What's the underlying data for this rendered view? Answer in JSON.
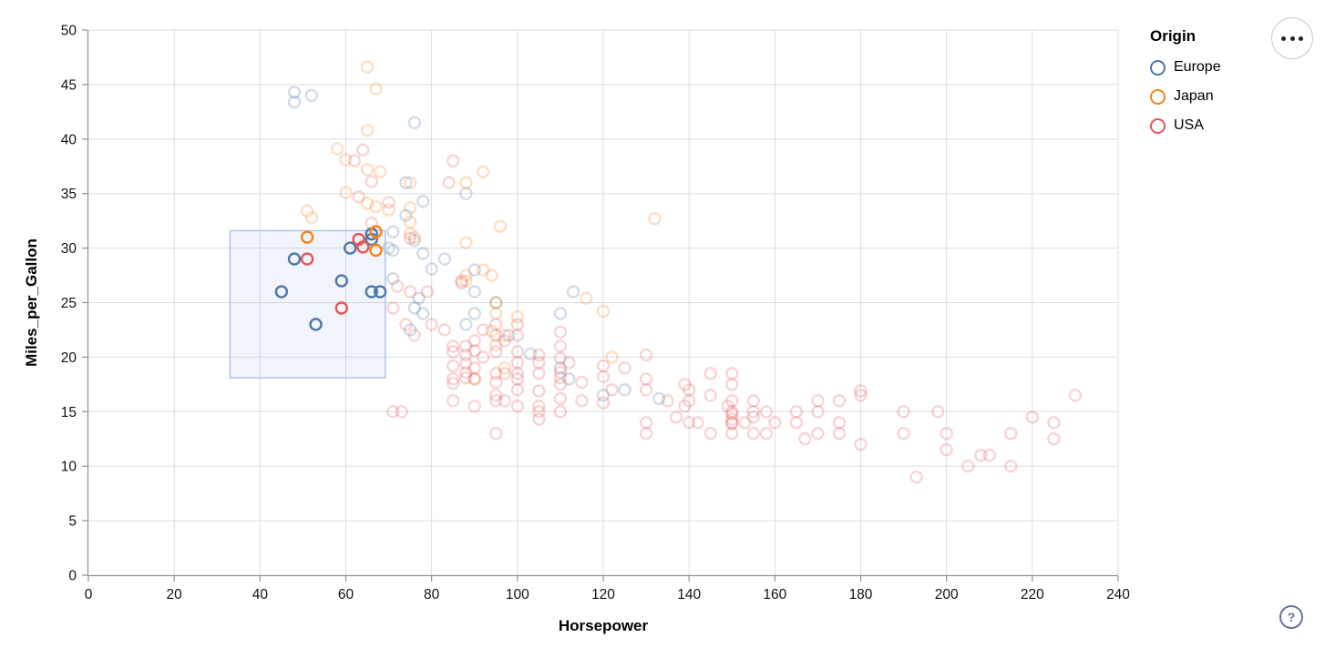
{
  "chart_data": {
    "type": "scatter",
    "title": "",
    "xlabel": "Horsepower",
    "ylabel": "Miles_per_Gallon",
    "xlim": [
      0,
      240
    ],
    "ylim": [
      0,
      50
    ],
    "x_ticks": [
      0,
      20,
      40,
      60,
      80,
      100,
      120,
      140,
      160,
      180,
      200,
      220,
      240
    ],
    "y_ticks": [
      0,
      5,
      10,
      15,
      20,
      25,
      30,
      35,
      40,
      45,
      50
    ],
    "grid": true,
    "legend": {
      "title": "Origin",
      "position": "top-right",
      "entries": [
        {
          "label": "Europe",
          "color": "#4c78a8"
        },
        {
          "label": "Japan",
          "color": "#f58518"
        },
        {
          "label": "USA",
          "color": "#e45756"
        }
      ]
    },
    "brush_selection": {
      "hp": [
        33,
        69.2
      ],
      "mpg": [
        18.1,
        31.6
      ],
      "fill": "rgba(120,152,220,0.10)",
      "stroke": "#a8bcea"
    },
    "point_style": {
      "shape": "open-circle",
      "selected_opacity": 1,
      "unselected_opacity": 0.25
    },
    "series": [
      {
        "name": "Europe",
        "color": "#4c78a8",
        "selected": [
          [
            48,
            29
          ],
          [
            45,
            26
          ],
          [
            53,
            23
          ],
          [
            59,
            27
          ],
          [
            61,
            30
          ],
          [
            66,
            31.3
          ],
          [
            66,
            30.8
          ],
          [
            66,
            26
          ],
          [
            68,
            26
          ]
        ],
        "unselected": [
          [
            48,
            44.3
          ],
          [
            52,
            44
          ],
          [
            48,
            43.4
          ],
          [
            76,
            41.5
          ],
          [
            74,
            36
          ],
          [
            88,
            35
          ],
          [
            78,
            34.3
          ],
          [
            74,
            33
          ],
          [
            71,
            31.5
          ],
          [
            70,
            30
          ],
          [
            76,
            30.7
          ],
          [
            71,
            29.8
          ],
          [
            78,
            29.5
          ],
          [
            83,
            29
          ],
          [
            90,
            28
          ],
          [
            80,
            28.1
          ],
          [
            71,
            27.2
          ],
          [
            113,
            26
          ],
          [
            90,
            26
          ],
          [
            95,
            25
          ],
          [
            77,
            25.4
          ],
          [
            76,
            24.5
          ],
          [
            90,
            24
          ],
          [
            110,
            24
          ],
          [
            78,
            24
          ],
          [
            88,
            23
          ],
          [
            75,
            22.5
          ],
          [
            98,
            22
          ],
          [
            103,
            20.3
          ],
          [
            110,
            19
          ],
          [
            112,
            18
          ],
          [
            120,
            16.5
          ],
          [
            125,
            17
          ],
          [
            133,
            16.2
          ]
        ]
      },
      {
        "name": "Japan",
        "color": "#f58518",
        "selected": [
          [
            51,
            31
          ],
          [
            67,
            31.5
          ],
          [
            67,
            29.8
          ]
        ],
        "unselected": [
          [
            65,
            46.6
          ],
          [
            67,
            44.6
          ],
          [
            65,
            40.8
          ],
          [
            58,
            39.1
          ],
          [
            60,
            38.1
          ],
          [
            65,
            37.2
          ],
          [
            92,
            37
          ],
          [
            68,
            37
          ],
          [
            88,
            36
          ],
          [
            75,
            36
          ],
          [
            60,
            35.1
          ],
          [
            65,
            34.1
          ],
          [
            75,
            33.7
          ],
          [
            67,
            33.8
          ],
          [
            70,
            33.5
          ],
          [
            51,
            33.4
          ],
          [
            52,
            32.8
          ],
          [
            132,
            32.7
          ],
          [
            96,
            32
          ],
          [
            75,
            32.4
          ],
          [
            75,
            31.3
          ],
          [
            76,
            31
          ],
          [
            88,
            30.5
          ],
          [
            92,
            28
          ],
          [
            94,
            27.5
          ],
          [
            88,
            27.5
          ],
          [
            88,
            27
          ],
          [
            116,
            25.4
          ],
          [
            95,
            25
          ],
          [
            120,
            24.2
          ],
          [
            95,
            24
          ],
          [
            100,
            23.7
          ],
          [
            94,
            22.4
          ],
          [
            97,
            22
          ],
          [
            95,
            21.1
          ],
          [
            122,
            20
          ],
          [
            97,
            19
          ],
          [
            90,
            18
          ]
        ]
      },
      {
        "name": "USA",
        "color": "#e45756",
        "selected": [
          [
            51,
            29
          ],
          [
            63,
            30.8
          ],
          [
            64,
            30.1
          ],
          [
            59,
            24.5
          ]
        ],
        "unselected": [
          [
            64,
            39
          ],
          [
            62,
            38
          ],
          [
            85,
            38
          ],
          [
            84,
            36
          ],
          [
            66,
            36.1
          ],
          [
            63,
            34.7
          ],
          [
            70,
            34.2
          ],
          [
            66,
            32.3
          ],
          [
            75,
            30.9
          ],
          [
            72,
            26.5
          ],
          [
            75,
            26
          ],
          [
            79,
            26
          ],
          [
            71,
            24.5
          ],
          [
            74,
            23
          ],
          [
            80,
            23
          ],
          [
            76,
            22
          ],
          [
            83,
            22.5
          ],
          [
            71,
            15
          ],
          [
            73,
            15
          ],
          [
            85,
            21
          ],
          [
            85,
            20.5
          ],
          [
            85,
            19.2
          ],
          [
            85,
            18
          ],
          [
            85,
            17.6
          ],
          [
            85,
            16
          ],
          [
            87,
            27
          ],
          [
            87,
            26.8
          ],
          [
            88,
            21
          ],
          [
            88,
            20.2
          ],
          [
            88,
            19.4
          ],
          [
            88,
            18.6
          ],
          [
            88,
            18.1
          ],
          [
            90,
            21.5
          ],
          [
            90,
            20.6
          ],
          [
            90,
            19
          ],
          [
            90,
            18
          ],
          [
            90,
            15.5
          ],
          [
            92,
            22.5
          ],
          [
            92,
            20
          ],
          [
            95,
            23
          ],
          [
            95,
            22
          ],
          [
            95,
            20.5
          ],
          [
            95,
            18.5
          ],
          [
            95,
            17.7
          ],
          [
            95,
            16.5
          ],
          [
            95,
            16
          ],
          [
            95,
            13
          ],
          [
            97,
            21.5
          ],
          [
            97,
            18.5
          ],
          [
            97,
            16
          ],
          [
            100,
            23
          ],
          [
            100,
            22
          ],
          [
            100,
            20.5
          ],
          [
            100,
            19.5
          ],
          [
            100,
            18.5
          ],
          [
            100,
            18
          ],
          [
            100,
            17
          ],
          [
            100,
            15.5
          ],
          [
            105,
            20.2
          ],
          [
            105,
            19.5
          ],
          [
            105,
            18.5
          ],
          [
            105,
            16.9
          ],
          [
            105,
            15.5
          ],
          [
            105,
            15
          ],
          [
            105,
            14.3
          ],
          [
            110,
            22.3
          ],
          [
            110,
            21
          ],
          [
            110,
            19.9
          ],
          [
            110,
            18.6
          ],
          [
            110,
            18.1
          ],
          [
            110,
            17.5
          ],
          [
            110,
            16.2
          ],
          [
            110,
            15
          ],
          [
            112,
            19.5
          ],
          [
            115,
            17.7
          ],
          [
            115,
            16
          ],
          [
            120,
            19.2
          ],
          [
            120,
            18.2
          ],
          [
            120,
            15.8
          ],
          [
            122,
            17
          ],
          [
            125,
            19
          ],
          [
            130,
            20.2
          ],
          [
            130,
            18
          ],
          [
            130,
            17
          ],
          [
            130,
            14
          ],
          [
            130,
            13
          ],
          [
            135,
            16
          ],
          [
            137,
            14.5
          ],
          [
            139,
            17.5
          ],
          [
            139,
            15.5
          ],
          [
            140,
            17
          ],
          [
            140,
            16
          ],
          [
            140,
            14
          ],
          [
            142,
            14
          ],
          [
            145,
            18.5
          ],
          [
            145,
            16.5
          ],
          [
            145,
            13
          ],
          [
            149,
            15.5
          ],
          [
            150,
            18.5
          ],
          [
            150,
            17.5
          ],
          [
            150,
            16
          ],
          [
            150,
            15
          ],
          [
            150,
            14.8
          ],
          [
            150,
            14.3
          ],
          [
            150,
            14
          ],
          [
            150,
            13.9
          ],
          [
            150,
            13
          ],
          [
            153,
            14
          ],
          [
            155,
            16
          ],
          [
            155,
            15
          ],
          [
            155,
            14.5
          ],
          [
            155,
            13
          ],
          [
            158,
            15
          ],
          [
            158,
            13
          ],
          [
            160,
            14
          ],
          [
            165,
            15
          ],
          [
            165,
            14
          ],
          [
            167,
            12.5
          ],
          [
            170,
            16
          ],
          [
            170,
            15
          ],
          [
            170,
            13
          ],
          [
            175,
            16
          ],
          [
            175,
            14
          ],
          [
            175,
            13
          ],
          [
            180,
            16.9
          ],
          [
            180,
            16.5
          ],
          [
            180,
            12
          ],
          [
            190,
            15
          ],
          [
            190,
            13
          ],
          [
            193,
            9
          ],
          [
            198,
            15
          ],
          [
            200,
            13
          ],
          [
            200,
            11.5
          ],
          [
            205,
            10
          ],
          [
            208,
            11
          ],
          [
            210,
            11
          ],
          [
            215,
            13
          ],
          [
            215,
            10
          ],
          [
            220,
            14.5
          ],
          [
            225,
            14
          ],
          [
            225,
            12.5
          ],
          [
            230,
            16.5
          ]
        ]
      }
    ]
  },
  "ui": {
    "menu_button": "ellipsis-menu",
    "help_label": "?"
  }
}
